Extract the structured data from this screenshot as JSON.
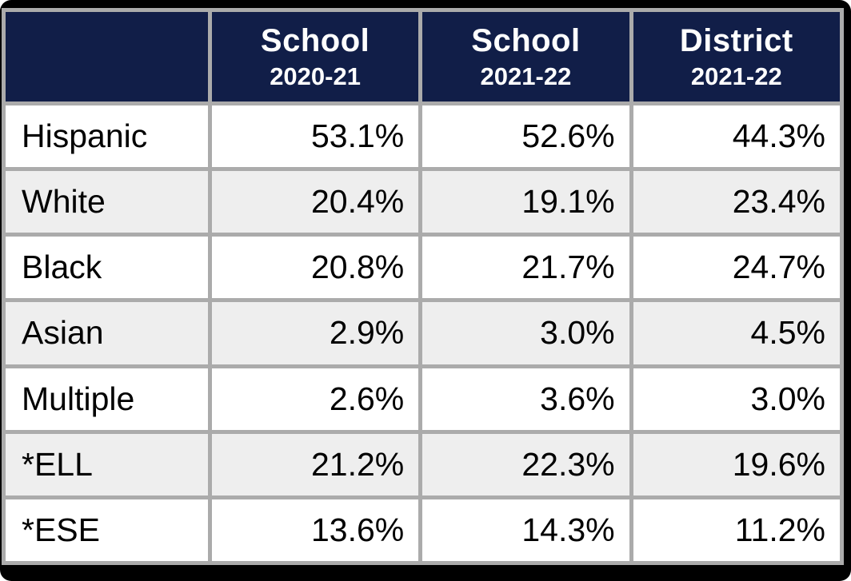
{
  "colors": {
    "frame": "#000000",
    "header_bg": "#111e48",
    "header_text": "#ffffff",
    "grid_border": "#ababab",
    "row_bg": "#ffffff",
    "row_alt_bg": "#eeeeee",
    "body_text": "#000000"
  },
  "chart_data": {
    "type": "table",
    "columns": [
      {
        "title": "",
        "subtitle": ""
      },
      {
        "title": "School",
        "subtitle": "2020-21"
      },
      {
        "title": "School",
        "subtitle": "2021-22"
      },
      {
        "title": "District",
        "subtitle": "2021-22"
      }
    ],
    "rows": [
      {
        "label": "Hispanic",
        "values": [
          "53.1%",
          "52.6%",
          "44.3%"
        ]
      },
      {
        "label": "White",
        "values": [
          "20.4%",
          "19.1%",
          "23.4%"
        ]
      },
      {
        "label": "Black",
        "values": [
          "20.8%",
          "21.7%",
          "24.7%"
        ]
      },
      {
        "label": "Asian",
        "values": [
          "2.9%",
          "3.0%",
          "4.5%"
        ]
      },
      {
        "label": "Multiple",
        "values": [
          "2.6%",
          "3.6%",
          "3.0%"
        ]
      },
      {
        "label": "*ELL",
        "values": [
          "21.2%",
          "22.3%",
          "19.6%"
        ]
      },
      {
        "label": "*ESE",
        "values": [
          "13.6%",
          "14.3%",
          "11.2%"
        ]
      }
    ]
  }
}
